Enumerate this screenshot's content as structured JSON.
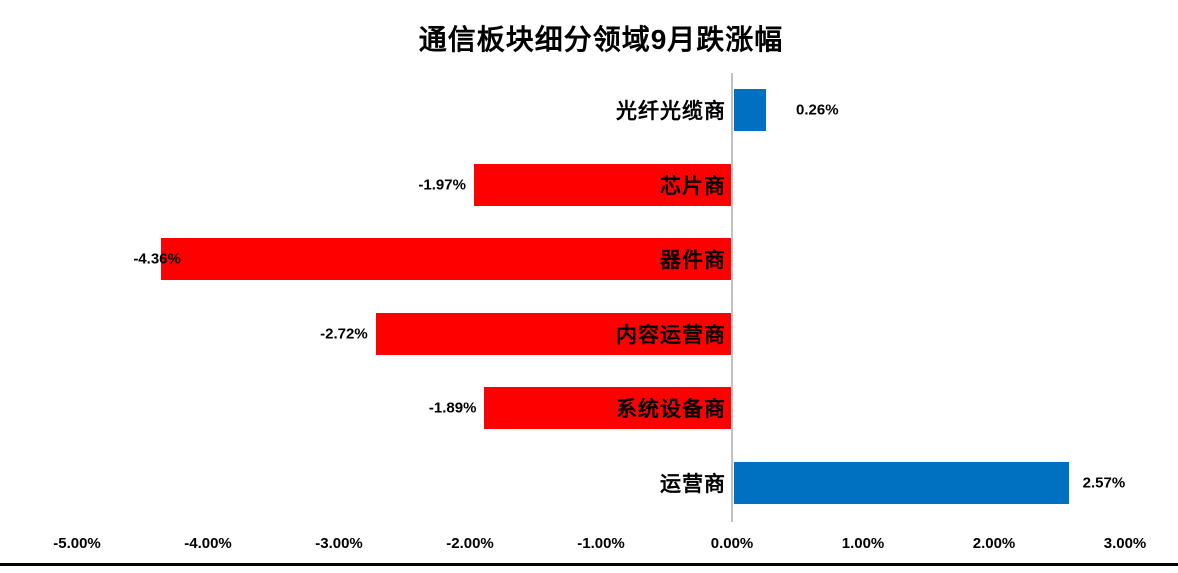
{
  "chart_data": {
    "type": "bar",
    "orientation": "horizontal",
    "title": "通信板块细分领域9月跌涨幅",
    "categories": [
      "光纤光缆商",
      "芯片商",
      "器件商",
      "内容运营商",
      "系统设备商",
      "运营商"
    ],
    "values": [
      0.26,
      -1.97,
      -4.36,
      -2.72,
      -1.89,
      2.57
    ],
    "value_labels": [
      "0.26%",
      "-1.97%",
      "-4.36%",
      "-2.72%",
      "-1.89%",
      "2.57%"
    ],
    "label_dx": [
      16,
      0,
      28,
      0,
      0,
      0
    ],
    "unit": "percent",
    "xlim": [
      -5,
      3
    ],
    "x_ticks": [
      {
        "value": -5,
        "label": "-5.00%"
      },
      {
        "value": -4,
        "label": "-4.00%"
      },
      {
        "value": -3,
        "label": "-3.00%"
      },
      {
        "value": -2,
        "label": "-2.00%"
      },
      {
        "value": -1,
        "label": "-1.00%"
      },
      {
        "value": 0,
        "label": "0.00%"
      },
      {
        "value": 1,
        "label": "1.00%"
      },
      {
        "value": 2,
        "label": "2.00%"
      },
      {
        "value": 3,
        "label": "3.00%"
      }
    ],
    "grid": false,
    "legend": false,
    "colors": {
      "positive_bar": "#0070C0",
      "negative_bar": "#FF0000",
      "text": "#000000",
      "zero_axis_line": "#C0C0C0",
      "bottom_border": "#000000"
    }
  }
}
